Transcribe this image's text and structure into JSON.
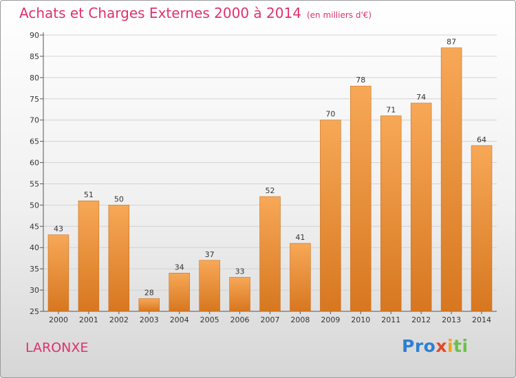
{
  "header": {
    "title": "Achats et Charges Externes 2000 à 2014",
    "subtitle": "(en milliers d'€)"
  },
  "footer": {
    "place": "LARONXE",
    "brand": [
      "Pro",
      "x",
      "i",
      "ti"
    ]
  },
  "colors": {
    "bar_top": "#f7a857",
    "bar_bottom": "#d77720",
    "title": "#e0306a"
  },
  "chart_data": {
    "type": "bar",
    "categories": [
      "2000",
      "2001",
      "2002",
      "2003",
      "2004",
      "2005",
      "2006",
      "2007",
      "2008",
      "2009",
      "2010",
      "2011",
      "2012",
      "2013",
      "2014"
    ],
    "values": [
      43,
      51,
      50,
      28,
      34,
      37,
      33,
      52,
      41,
      70,
      78,
      71,
      74,
      87,
      64
    ],
    "ylim": [
      25,
      90
    ],
    "yticks": [
      25,
      30,
      35,
      40,
      45,
      50,
      55,
      60,
      65,
      70,
      75,
      80,
      85,
      90
    ],
    "grid": true
  }
}
